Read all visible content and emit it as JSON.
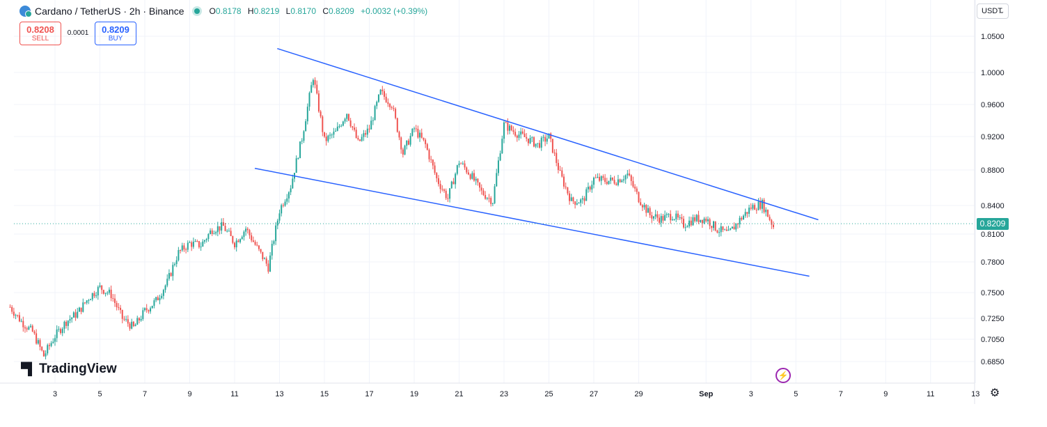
{
  "header": {
    "title": "Cardano / TetherUS · 2h · Binance",
    "ohlc": [
      {
        "k": "O",
        "v": "0.8178"
      },
      {
        "k": "H",
        "v": "0.8219"
      },
      {
        "k": "L",
        "v": "0.8170"
      },
      {
        "k": "C",
        "v": "0.8209"
      }
    ],
    "change": "+0.0032 (+0.39%)"
  },
  "trade": {
    "sell_price": "0.8208",
    "sell_label": "SELL",
    "spread": "0.0001",
    "buy_price": "0.8209",
    "buy_label": "BUY"
  },
  "currency_button": "USDT",
  "current_price_label": "0.8209",
  "logo_text": "TradingView",
  "colors": {
    "up": "#26a69a",
    "down": "#ef5350",
    "trendline": "#2962ff",
    "grid": "#f0f3fa",
    "price_line": "#26a69a"
  },
  "chart_data": {
    "type": "candlestick",
    "symbol": "Cardano / TetherUS",
    "interval": "2h",
    "exchange": "Binance",
    "y_ticks": [
      "1.0500",
      "1.0000",
      "0.9600",
      "0.9200",
      "0.8800",
      "0.8400",
      "0.8100",
      "0.7800",
      "0.7500",
      "0.7250",
      "0.7050",
      "0.6850"
    ],
    "y_tick_values": [
      1.05,
      1.0,
      0.96,
      0.92,
      0.88,
      0.84,
      0.81,
      0.78,
      0.75,
      0.725,
      0.705,
      0.685
    ],
    "x_ticks": [
      "3",
      "5",
      "7",
      "9",
      "11",
      "13",
      "15",
      "17",
      "19",
      "21",
      "23",
      "25",
      "27",
      "29",
      "Sep",
      "3",
      "5",
      "7",
      "9",
      "11",
      "13"
    ],
    "x_tick_days": [
      3,
      5,
      7,
      9,
      11,
      13,
      15,
      17,
      19,
      21,
      23,
      25,
      27,
      29,
      32,
      34,
      36,
      38,
      40,
      42,
      44
    ],
    "current_price": 0.8209,
    "grid": true,
    "price_anchors": [
      [
        1,
        0.736
      ],
      [
        1.5,
        0.722
      ],
      [
        2,
        0.712
      ],
      [
        2.5,
        0.69
      ],
      [
        3,
        0.708
      ],
      [
        3.5,
        0.722
      ],
      [
        4,
        0.73
      ],
      [
        4.5,
        0.745
      ],
      [
        5,
        0.755
      ],
      [
        5.5,
        0.748
      ],
      [
        6,
        0.725
      ],
      [
        6.5,
        0.716
      ],
      [
        7,
        0.732
      ],
      [
        7.5,
        0.742
      ],
      [
        8,
        0.76
      ],
      [
        8.5,
        0.79
      ],
      [
        9,
        0.8
      ],
      [
        9.5,
        0.798
      ],
      [
        10,
        0.815
      ],
      [
        10.5,
        0.818
      ],
      [
        11,
        0.8
      ],
      [
        11.5,
        0.816
      ],
      [
        12,
        0.795
      ],
      [
        12.5,
        0.775
      ],
      [
        13,
        0.835
      ],
      [
        13.5,
        0.862
      ],
      [
        14,
        0.918
      ],
      [
        14.5,
        0.995
      ],
      [
        15,
        0.915
      ],
      [
        15.5,
        0.925
      ],
      [
        16,
        0.95
      ],
      [
        16.5,
        0.912
      ],
      [
        17,
        0.93
      ],
      [
        17.5,
        0.975
      ],
      [
        18,
        0.96
      ],
      [
        18.5,
        0.9
      ],
      [
        19,
        0.93
      ],
      [
        19.5,
        0.91
      ],
      [
        20,
        0.87
      ],
      [
        20.5,
        0.848
      ],
      [
        21,
        0.89
      ],
      [
        21.5,
        0.875
      ],
      [
        22,
        0.855
      ],
      [
        22.5,
        0.845
      ],
      [
        23,
        0.935
      ],
      [
        23.5,
        0.925
      ],
      [
        24,
        0.918
      ],
      [
        24.5,
        0.91
      ],
      [
        25,
        0.92
      ],
      [
        25.5,
        0.875
      ],
      [
        26,
        0.845
      ],
      [
        26.5,
        0.845
      ],
      [
        27,
        0.87
      ],
      [
        27.5,
        0.868
      ],
      [
        28,
        0.868
      ],
      [
        28.5,
        0.875
      ],
      [
        29,
        0.848
      ],
      [
        29.5,
        0.83
      ],
      [
        30,
        0.826
      ],
      [
        30.5,
        0.83
      ],
      [
        31,
        0.82
      ],
      [
        31.5,
        0.826
      ],
      [
        32,
        0.826
      ],
      [
        32.5,
        0.815
      ],
      [
        33,
        0.81
      ],
      [
        33.5,
        0.825
      ],
      [
        34,
        0.838
      ],
      [
        34.5,
        0.842
      ],
      [
        35,
        0.818
      ]
    ],
    "trendlines": [
      {
        "name": "upper",
        "points": [
          [
            12.9,
            1.033
          ],
          [
            37.0,
            0.825
          ]
        ]
      },
      {
        "name": "lower",
        "points": [
          [
            11.9,
            0.882
          ],
          [
            36.6,
            0.766
          ]
        ]
      }
    ]
  }
}
